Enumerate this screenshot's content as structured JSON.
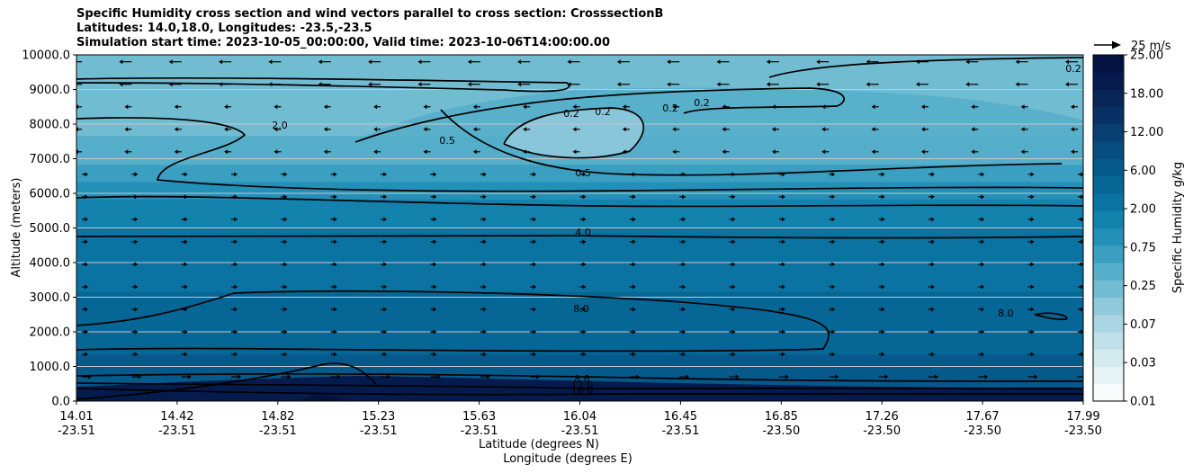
{
  "chart_data": {
    "type": "contourf",
    "title_lines": [
      "Specific Humidity cross section and wind vectors parallel to cross section: CrosssectionB",
      "Latitudes: 14.0,18.0, Longitudes: -23.5,-23.5",
      "Simulation start time: 2023-10-05_00:00:00, Valid time: 2023-10-06T14:00:00.00"
    ],
    "ylabel": "Altitude (meters)",
    "xlabel_lines": [
      "Latitude (degrees N)",
      "Longitude (degrees E)"
    ],
    "ylim": [
      0,
      10000
    ],
    "y_ticks": [
      "0.0",
      "1000.0",
      "2000.0",
      "3000.0",
      "4000.0",
      "5000.0",
      "6000.0",
      "7000.0",
      "8000.0",
      "9000.0",
      "10000.0"
    ],
    "y_tick_values": [
      0,
      1000,
      2000,
      3000,
      4000,
      5000,
      6000,
      7000,
      8000,
      9000,
      10000
    ],
    "x_ticks": [
      {
        "lat": "14.01",
        "lon": "-23.51"
      },
      {
        "lat": "14.42",
        "lon": "-23.51"
      },
      {
        "lat": "14.82",
        "lon": "-23.51"
      },
      {
        "lat": "15.23",
        "lon": "-23.51"
      },
      {
        "lat": "15.63",
        "lon": "-23.51"
      },
      {
        "lat": "16.04",
        "lon": "-23.51"
      },
      {
        "lat": "16.45",
        "lon": "-23.51"
      },
      {
        "lat": "16.85",
        "lon": "-23.50"
      },
      {
        "lat": "17.26",
        "lon": "-23.50"
      },
      {
        "lat": "17.67",
        "lon": "-23.50"
      },
      {
        "lat": "17.99",
        "lon": "-23.50"
      }
    ],
    "grid": "horizontal",
    "colorbar": {
      "label": "Specific Humidity g/kg",
      "tick_labels": [
        "0.01",
        "0.03",
        "0.07",
        "0.25",
        "0.75",
        "2.00",
        "6.00",
        "12.00",
        "18.00",
        "25.00"
      ],
      "level_colors": [
        "#f7fbfc",
        "#e6f3f5",
        "#d3eaef",
        "#bfe0e8",
        "#a8d5e1",
        "#8fc9da",
        "#72bcd2",
        "#55aeca",
        "#3a9fc1",
        "#2390b8",
        "#1382ad",
        "#0a73a1",
        "#066696",
        "#06598b",
        "#074d80",
        "#083f73",
        "#083266",
        "#082658",
        "#061b4d",
        "#041242"
      ]
    },
    "quiver_key": "25 m/s",
    "contour_labels": [
      "0.2",
      "0.5",
      "2.0",
      "4.0",
      "8.0",
      "12.0",
      "16.0"
    ],
    "humidity_profile": [
      {
        "altitude": 0,
        "q": 16.0
      },
      {
        "altitude": 300,
        "q": 13.0
      },
      {
        "altitude": 600,
        "q": 10.0
      },
      {
        "altitude": 1500,
        "q": 8.0
      },
      {
        "altitude": 2500,
        "q": 7.0
      },
      {
        "altitude": 3500,
        "q": 5.5
      },
      {
        "altitude": 4500,
        "q": 4.3
      },
      {
        "altitude": 5500,
        "q": 2.5
      },
      {
        "altitude": 6500,
        "q": 0.9
      },
      {
        "altitude": 7500,
        "q": 0.45
      },
      {
        "altitude": 8500,
        "q": 0.35
      },
      {
        "altitude": 10000,
        "q": 0.25
      }
    ],
    "colors": {
      "contour": "#000000",
      "grid": "#c8c8c8",
      "quiver": "#000000"
    }
  }
}
